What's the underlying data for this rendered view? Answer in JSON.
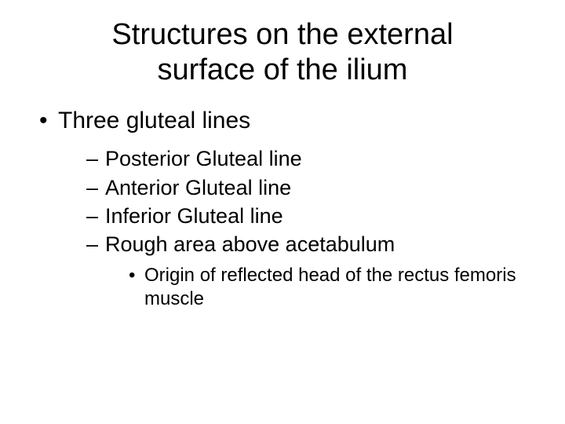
{
  "type": "slide",
  "background_color": "#ffffff",
  "text_color": "#000000",
  "font_family": "Arial",
  "title": {
    "line1": "Structures on the external",
    "line2": "surface of the ilium",
    "fontsize": 38,
    "align": "center"
  },
  "bullets": {
    "level1": [
      {
        "text": "Three gluteal lines",
        "fontsize": 30
      }
    ],
    "level2": [
      {
        "text": "Posterior Gluteal line",
        "fontsize": 27
      },
      {
        "text": "Anterior Gluteal line",
        "fontsize": 27
      },
      {
        "text": "Inferior Gluteal line",
        "fontsize": 27
      },
      {
        "text": "Rough area above acetabulum",
        "fontsize": 27
      }
    ],
    "level3": [
      {
        "text": "Origin of reflected head of the rectus femoris muscle",
        "fontsize": 24
      }
    ]
  }
}
